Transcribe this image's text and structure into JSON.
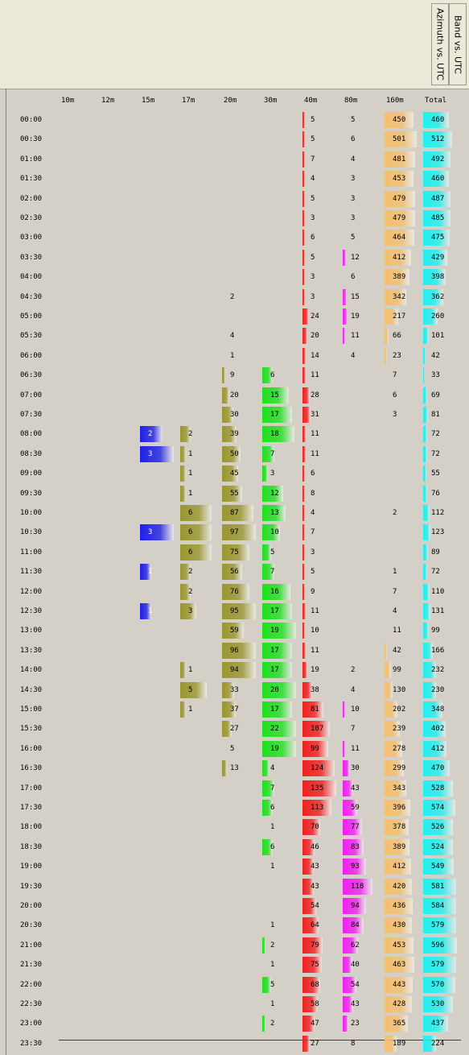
{
  "tabs": [
    {
      "label": "Band vs. UTC"
    },
    {
      "label": "Azimuth vs. UTC"
    }
  ],
  "columns": [
    "10m",
    "12m",
    "15m",
    "17m",
    "20m",
    "30m",
    "40m",
    "80m",
    "160m",
    "Total"
  ],
  "times": [
    "00:00",
    "00:30",
    "01:00",
    "01:30",
    "02:00",
    "02:30",
    "03:00",
    "03:30",
    "04:00",
    "04:30",
    "05:00",
    "05:30",
    "06:00",
    "06:30",
    "07:00",
    "07:30",
    "08:00",
    "08:30",
    "09:00",
    "09:30",
    "10:00",
    "10:30",
    "11:00",
    "11:30",
    "12:00",
    "12:30",
    "13:00",
    "13:30",
    "14:00",
    "14:30",
    "15:00",
    "15:30",
    "16:00",
    "16:30",
    "17:00",
    "17:30",
    "18:00",
    "18:30",
    "19:00",
    "19:30",
    "20:00",
    "20:30",
    "21:00",
    "21:30",
    "22:00",
    "22:30",
    "23:00",
    "23:30"
  ],
  "colors": {
    "15m": "#2020e8",
    "17m": "#9a9630",
    "20m": "#9a9630",
    "30m": "#20e020",
    "40m": "#f02020",
    "80m": "#f020f0",
    "160m": "#f4c070",
    "Total": "#20f0f0"
  },
  "chart_data": {
    "type": "table",
    "row_header": "UTC",
    "columns": [
      "10m",
      "12m",
      "15m",
      "17m",
      "20m",
      "30m",
      "40m",
      "80m",
      "160m",
      "Total"
    ],
    "rows": [
      {
        "time": "00:00",
        "values": [
          null,
          null,
          null,
          null,
          null,
          null,
          5,
          5,
          450,
          460
        ]
      },
      {
        "time": "00:30",
        "values": [
          null,
          null,
          null,
          null,
          null,
          null,
          5,
          6,
          501,
          512
        ]
      },
      {
        "time": "01:00",
        "values": [
          null,
          null,
          null,
          null,
          null,
          null,
          7,
          4,
          481,
          492
        ]
      },
      {
        "time": "01:30",
        "values": [
          null,
          null,
          null,
          null,
          null,
          null,
          4,
          3,
          453,
          460
        ]
      },
      {
        "time": "02:00",
        "values": [
          null,
          null,
          null,
          null,
          null,
          null,
          5,
          3,
          479,
          487
        ]
      },
      {
        "time": "02:30",
        "values": [
          null,
          null,
          null,
          null,
          null,
          null,
          3,
          3,
          479,
          485
        ]
      },
      {
        "time": "03:00",
        "values": [
          null,
          null,
          null,
          null,
          null,
          null,
          6,
          5,
          464,
          475
        ]
      },
      {
        "time": "03:30",
        "values": [
          null,
          null,
          null,
          null,
          null,
          null,
          5,
          12,
          412,
          429
        ]
      },
      {
        "time": "04:00",
        "values": [
          null,
          null,
          null,
          null,
          null,
          null,
          3,
          6,
          389,
          398
        ]
      },
      {
        "time": "04:30",
        "values": [
          null,
          null,
          null,
          null,
          2,
          null,
          3,
          15,
          342,
          362
        ]
      },
      {
        "time": "05:00",
        "values": [
          null,
          null,
          null,
          null,
          null,
          null,
          24,
          19,
          217,
          260
        ]
      },
      {
        "time": "05:30",
        "values": [
          null,
          null,
          null,
          null,
          4,
          null,
          20,
          11,
          66,
          101
        ]
      },
      {
        "time": "06:00",
        "values": [
          null,
          null,
          null,
          null,
          1,
          null,
          14,
          4,
          23,
          42
        ]
      },
      {
        "time": "06:30",
        "values": [
          null,
          null,
          null,
          null,
          9,
          6,
          11,
          null,
          7,
          33
        ]
      },
      {
        "time": "07:00",
        "values": [
          null,
          null,
          null,
          null,
          20,
          15,
          28,
          null,
          6,
          69
        ]
      },
      {
        "time": "07:30",
        "values": [
          null,
          null,
          null,
          null,
          30,
          17,
          31,
          null,
          3,
          81
        ]
      },
      {
        "time": "08:00",
        "values": [
          null,
          null,
          2,
          2,
          39,
          18,
          11,
          null,
          null,
          72
        ]
      },
      {
        "time": "08:30",
        "values": [
          null,
          null,
          3,
          1,
          50,
          7,
          11,
          null,
          null,
          72
        ]
      },
      {
        "time": "09:00",
        "values": [
          null,
          null,
          null,
          1,
          45,
          3,
          6,
          null,
          null,
          55
        ]
      },
      {
        "time": "09:30",
        "values": [
          null,
          null,
          null,
          1,
          55,
          12,
          8,
          null,
          null,
          76
        ]
      },
      {
        "time": "10:00",
        "values": [
          null,
          null,
          null,
          6,
          87,
          13,
          4,
          null,
          2,
          112
        ]
      },
      {
        "time": "10:30",
        "values": [
          null,
          null,
          3,
          6,
          97,
          10,
          7,
          null,
          null,
          123
        ]
      },
      {
        "time": "11:00",
        "values": [
          null,
          null,
          null,
          6,
          75,
          5,
          3,
          null,
          null,
          89
        ]
      },
      {
        "time": "11:30",
        "values": [
          null,
          null,
          1,
          2,
          56,
          7,
          5,
          null,
          1,
          72
        ]
      },
      {
        "time": "12:00",
        "values": [
          null,
          null,
          null,
          2,
          76,
          16,
          9,
          null,
          7,
          110
        ]
      },
      {
        "time": "12:30",
        "values": [
          null,
          null,
          1,
          3,
          95,
          17,
          11,
          null,
          4,
          131
        ]
      },
      {
        "time": "13:00",
        "values": [
          null,
          null,
          null,
          null,
          59,
          19,
          10,
          null,
          11,
          99
        ]
      },
      {
        "time": "13:30",
        "values": [
          null,
          null,
          null,
          null,
          96,
          17,
          11,
          null,
          42,
          166
        ]
      },
      {
        "time": "14:00",
        "values": [
          null,
          null,
          null,
          1,
          94,
          17,
          19,
          2,
          99,
          232
        ]
      },
      {
        "time": "14:30",
        "values": [
          null,
          null,
          null,
          5,
          33,
          20,
          38,
          4,
          130,
          230
        ]
      },
      {
        "time": "15:00",
        "values": [
          null,
          null,
          null,
          1,
          37,
          17,
          81,
          10,
          202,
          348
        ]
      },
      {
        "time": "15:30",
        "values": [
          null,
          null,
          null,
          null,
          27,
          22,
          107,
          7,
          239,
          402
        ]
      },
      {
        "time": "16:00",
        "values": [
          null,
          null,
          null,
          null,
          5,
          19,
          99,
          11,
          278,
          412
        ]
      },
      {
        "time": "16:30",
        "values": [
          null,
          null,
          null,
          null,
          13,
          4,
          124,
          30,
          299,
          470
        ]
      },
      {
        "time": "17:00",
        "values": [
          null,
          null,
          null,
          null,
          null,
          7,
          135,
          43,
          343,
          528
        ]
      },
      {
        "time": "17:30",
        "values": [
          null,
          null,
          null,
          null,
          null,
          6,
          113,
          59,
          396,
          574
        ]
      },
      {
        "time": "18:00",
        "values": [
          null,
          null,
          null,
          null,
          null,
          1,
          70,
          77,
          378,
          526
        ]
      },
      {
        "time": "18:30",
        "values": [
          null,
          null,
          null,
          null,
          null,
          6,
          46,
          83,
          389,
          524
        ]
      },
      {
        "time": "19:00",
        "values": [
          null,
          null,
          null,
          null,
          null,
          1,
          43,
          93,
          412,
          549
        ]
      },
      {
        "time": "19:30",
        "values": [
          null,
          null,
          null,
          null,
          null,
          null,
          43,
          118,
          420,
          581
        ]
      },
      {
        "time": "20:00",
        "values": [
          null,
          null,
          null,
          null,
          null,
          null,
          54,
          94,
          436,
          584
        ]
      },
      {
        "time": "20:30",
        "values": [
          null,
          null,
          null,
          null,
          null,
          1,
          64,
          84,
          430,
          579
        ]
      },
      {
        "time": "21:00",
        "values": [
          null,
          null,
          null,
          null,
          null,
          2,
          79,
          62,
          453,
          596
        ]
      },
      {
        "time": "21:30",
        "values": [
          null,
          null,
          null,
          null,
          null,
          1,
          75,
          40,
          463,
          579
        ]
      },
      {
        "time": "22:00",
        "values": [
          null,
          null,
          null,
          null,
          null,
          5,
          68,
          54,
          443,
          570
        ]
      },
      {
        "time": "22:30",
        "values": [
          null,
          null,
          null,
          null,
          null,
          1,
          58,
          43,
          428,
          530
        ]
      },
      {
        "time": "23:00",
        "values": [
          null,
          null,
          null,
          null,
          null,
          2,
          47,
          23,
          365,
          437
        ]
      },
      {
        "time": "23:30",
        "values": [
          null,
          null,
          null,
          null,
          null,
          null,
          27,
          8,
          189,
          224
        ]
      }
    ]
  }
}
